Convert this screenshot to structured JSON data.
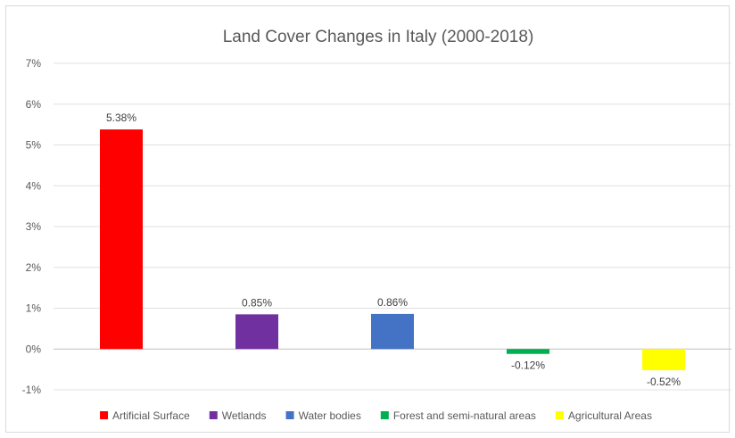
{
  "chart_data": {
    "type": "bar",
    "title": "Land Cover Changes in Italy (2000-2018)",
    "categories": [
      "Artificial Surface",
      "Wetlands",
      "Water bodies",
      "Forest and semi-natural areas",
      "Agricultural Areas"
    ],
    "values": [
      5.38,
      0.85,
      0.86,
      -0.12,
      -0.52
    ],
    "data_labels": [
      "5.38%",
      "0.85%",
      "0.86%",
      "-0.12%",
      "-0.52%"
    ],
    "colors": [
      "#ff0000",
      "#7030a0",
      "#4472c4",
      "#00b050",
      "#ffff00"
    ],
    "ylim": [
      -1,
      7
    ],
    "yticks": [
      -1,
      0,
      1,
      2,
      3,
      4,
      5,
      6,
      7
    ],
    "ytick_labels": [
      "-1%",
      "0%",
      "1%",
      "2%",
      "3%",
      "4%",
      "5%",
      "6%",
      "7%"
    ],
    "grid": true,
    "legend_position": "bottom",
    "xlabel": "",
    "ylabel": ""
  }
}
